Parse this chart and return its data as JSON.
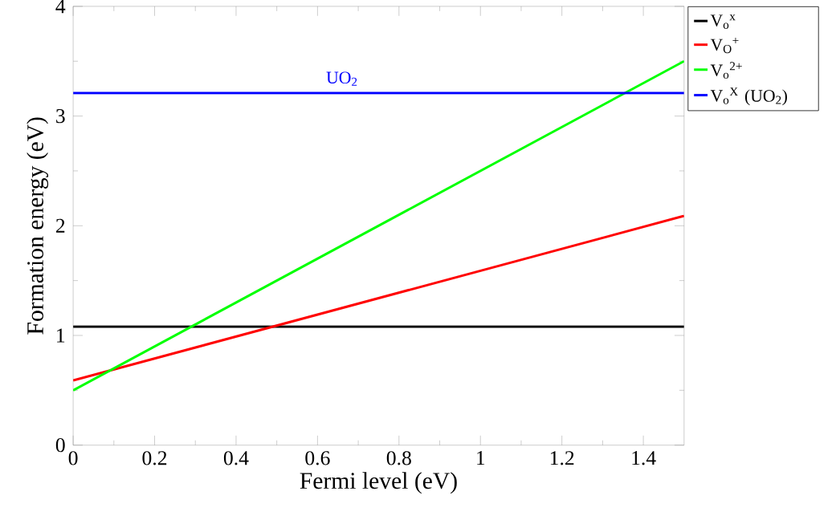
{
  "chart_data": {
    "type": "line",
    "xlabel": "Fermi level (eV)",
    "ylabel": "Formation energy (eV)",
    "x": [
      0,
      1.5
    ],
    "series": [
      {
        "name": "V$_{o}$$^{x}$",
        "color": "#000000",
        "values": [
          1.08,
          1.08
        ]
      },
      {
        "name": "V$_{O}$$^{+}$",
        "color": "#ff0000",
        "values": [
          0.59,
          2.09
        ]
      },
      {
        "name": "V$_{o}$$^{2+}$",
        "color": "#00ff00",
        "values": [
          0.5,
          3.5
        ]
      },
      {
        "name": "V$_{o}$$^{X}$ (UO$_{2}$)",
        "color": "#0000ff",
        "values": [
          3.21,
          3.21
        ]
      }
    ],
    "annotations": [
      "UO$_{2}$"
    ],
    "xlim": [
      0,
      1.5
    ],
    "ylim": [
      0,
      4
    ],
    "xticks": [
      0,
      0.2,
      0.4,
      0.6,
      0.8,
      1,
      1.2,
      1.4
    ],
    "yticks": [
      0,
      1,
      2,
      3,
      4
    ],
    "grid": false,
    "legend": "right",
    "marker": "none",
    "line_style": "solid"
  }
}
